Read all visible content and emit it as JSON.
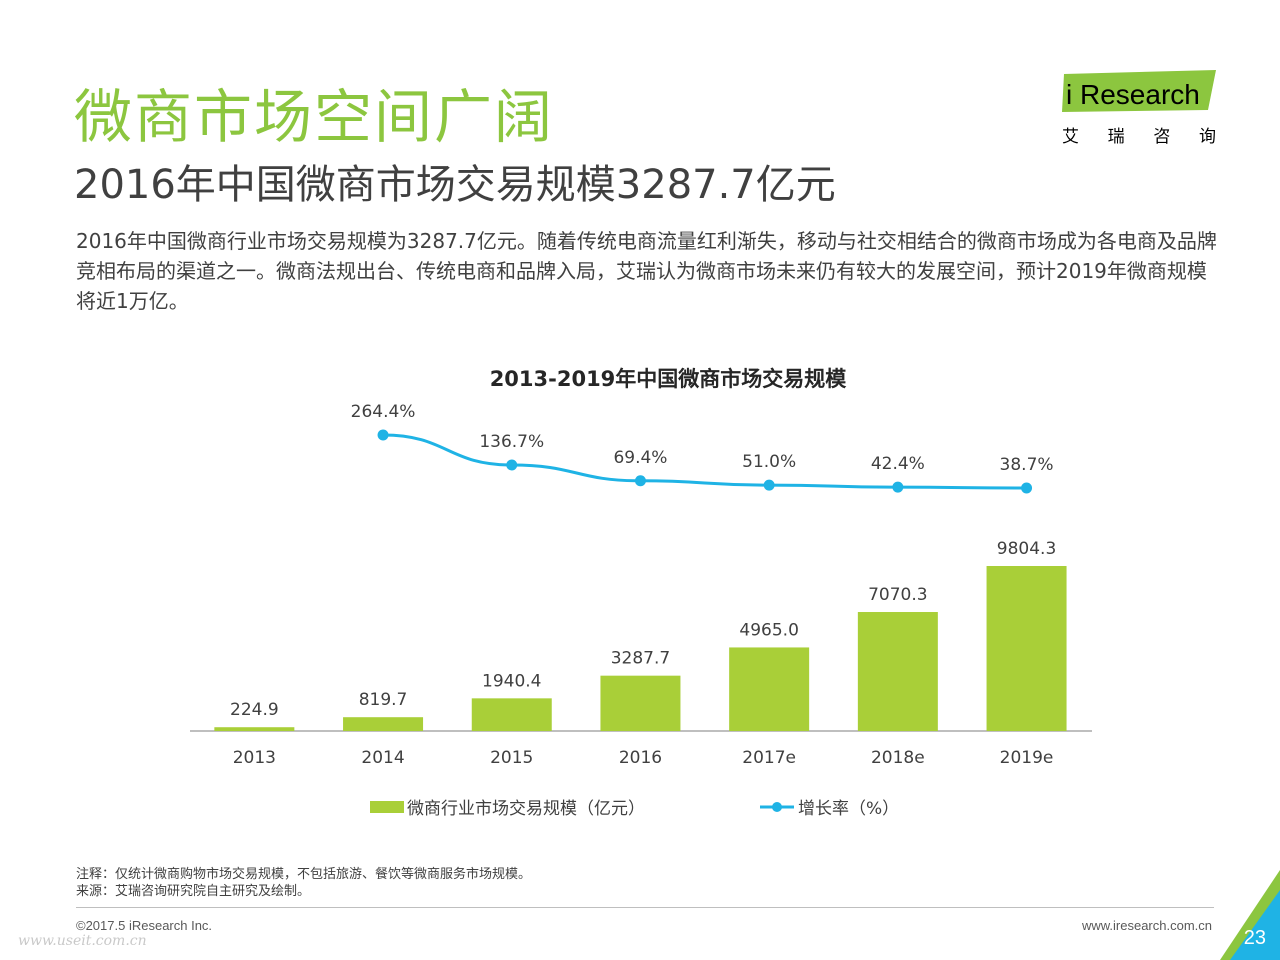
{
  "header": {
    "title": "微商市场空间广阔",
    "subtitle": "2016年中国微商市场交易规模3287.7亿元",
    "body": "2016年中国微商行业市场交易规模为3287.7亿元。随着传统电商流量红利渐失，移动与社交相结合的微商市场成为各电商及品牌竞相布局的渠道之一。微商法规出台、传统电商和品牌入局，艾瑞认为微商市场未来仍有较大的发展空间，预计2019年微商规模将近1万亿。"
  },
  "logo": {
    "brand_prefix": "i",
    "brand_rest": "Research",
    "cn": "艾 瑞 咨 询"
  },
  "chart_data": {
    "type": "bar",
    "title": "2013-2019年中国微商市场交易规模",
    "categories": [
      "2013",
      "2014",
      "2015",
      "2016",
      "2017e",
      "2018e",
      "2019e"
    ],
    "series": [
      {
        "name": "微商行业市场交易规模（亿元）",
        "type": "bar",
        "values": [
          224.9,
          819.7,
          1940.4,
          3287.7,
          4965.0,
          7070.3,
          9804.3
        ],
        "labels": [
          "224.9",
          "819.7",
          "1940.4",
          "3287.7",
          "4965.0",
          "7070.3",
          "9804.3"
        ],
        "color": "#a9cf38"
      },
      {
        "name": "增长率（%）",
        "type": "line",
        "values": [
          null,
          264.4,
          136.7,
          69.4,
          51.0,
          42.4,
          38.7
        ],
        "labels": [
          "",
          "264.4%",
          "136.7%",
          "69.4%",
          "51.0%",
          "42.4%",
          "38.7%"
        ],
        "color": "#1fb3e5"
      }
    ],
    "legend_position": "bottom",
    "grid": false
  },
  "notes": {
    "note": "注释：仅统计微商购物市场交易规模，不包括旅游、餐饮等微商服务市场规模。",
    "source": "来源：艾瑞咨询研究院自主研究及绘制。"
  },
  "footer": {
    "copyright": "©2017.5 iResearch Inc.",
    "website": "www.iresearch.com.cn",
    "page_number": "23",
    "watermark": "www.useit.com.cn"
  },
  "colors": {
    "title_green": "#8cc63f",
    "bar_green": "#a9cf38",
    "line_blue": "#1fb3e5",
    "corner_blue": "#1fb3e5",
    "corner_green": "#8cc63f"
  }
}
